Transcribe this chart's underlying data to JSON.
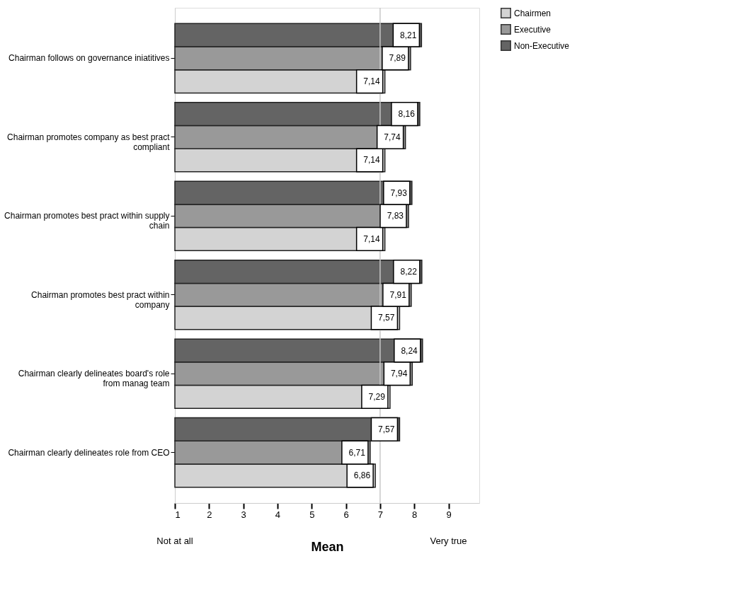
{
  "chart_data": {
    "type": "bar",
    "orientation": "horizontal",
    "xlabel": "Mean",
    "categories": [
      "Chairman follows on governance iniatitives",
      "Chairman promotes company as best pract compliant",
      "Chairman promotes best pract within supply chain",
      "Chairman promotes best pract within company",
      "Chairman clearly delineates board's role from manag team",
      "Chairman clearly delineates role from CEO"
    ],
    "series": [
      {
        "name": "Chairmen",
        "color": "#d3d3d3",
        "values": [
          7.14,
          7.14,
          7.14,
          7.57,
          7.29,
          6.86
        ],
        "value_labels": [
          "7,14",
          "7,14",
          "7,14",
          "7,57",
          "7,29",
          "6,86"
        ]
      },
      {
        "name": "Executive",
        "color": "#999999",
        "values": [
          7.89,
          7.74,
          7.83,
          7.91,
          7.94,
          6.71
        ],
        "value_labels": [
          "7,89",
          "7,74",
          "7,83",
          "7,91",
          "7,94",
          "6,71"
        ]
      },
      {
        "name": "Non-Executive",
        "color": "#646464",
        "values": [
          8.21,
          8.16,
          7.93,
          8.22,
          8.24,
          7.57
        ],
        "value_labels": [
          "8,21",
          "8,16",
          "7,93",
          "8,22",
          "8,24",
          "7,57"
        ]
      }
    ],
    "xlim": [
      1,
      9.9
    ],
    "xticks": [
      1,
      2,
      3,
      4,
      5,
      6,
      7,
      8,
      9
    ],
    "ref_lines": [
      {
        "axis": "x",
        "value": 7,
        "color": "#c8c8c8"
      }
    ],
    "annotations": [
      "Not at all",
      "Very true"
    ],
    "legend": "top right",
    "grid": false
  }
}
